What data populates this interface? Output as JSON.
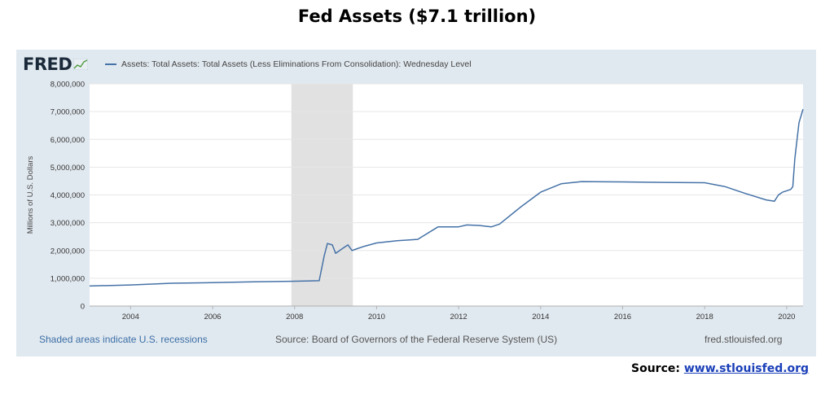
{
  "slide": {
    "title": "Fed Assets ($7.1 trillion)",
    "source_label": "Source:",
    "source_link": "www.stlouisfed.org"
  },
  "fred": {
    "logo_text": "FRED",
    "footer_left": "Shaded areas indicate U.S. recessions",
    "footer_mid": "Source: Board of Governors of the Federal Reserve System (US)",
    "footer_right": "fred.stlouisfed.org"
  },
  "chart_data": {
    "type": "line",
    "title": "Fed Assets ($7.1 trillion)",
    "ylabel": "Millions of U.S. Dollars",
    "xlabel": "",
    "xlim": [
      2003.0,
      2020.4
    ],
    "ylim": [
      0,
      8000000
    ],
    "y_ticks": [
      0,
      1000000,
      2000000,
      3000000,
      4000000,
      5000000,
      6000000,
      7000000,
      8000000
    ],
    "y_tick_labels": [
      "0",
      "1,000,000",
      "2,000,000",
      "3,000,000",
      "4,000,000",
      "5,000,000",
      "6,000,000",
      "7,000,000",
      "8,000,000"
    ],
    "x_ticks": [
      2004,
      2006,
      2008,
      2010,
      2012,
      2014,
      2016,
      2018,
      2020
    ],
    "x_tick_labels": [
      "2004",
      "2006",
      "2008",
      "2010",
      "2012",
      "2014",
      "2016",
      "2018",
      "2020"
    ],
    "grid": true,
    "recession_shading": [
      [
        2007.92,
        2009.42
      ]
    ],
    "line_color": "#4572a7",
    "series": [
      {
        "name": "Assets: Total Assets: Total Assets (Less Eliminations From Consolidation): Wednesday Level",
        "x": [
          2003.0,
          2004.0,
          2005.0,
          2006.0,
          2007.0,
          2007.9,
          2008.6,
          2008.72,
          2008.8,
          2008.92,
          2009.0,
          2009.2,
          2009.3,
          2009.4,
          2009.5,
          2009.7,
          2010.0,
          2010.5,
          2011.0,
          2011.5,
          2012.0,
          2012.2,
          2012.5,
          2012.8,
          2013.0,
          2013.5,
          2014.0,
          2014.5,
          2015.0,
          2016.0,
          2017.0,
          2018.0,
          2018.5,
          2019.0,
          2019.5,
          2019.7,
          2019.8,
          2019.9,
          2020.0,
          2020.1,
          2020.15,
          2020.2,
          2020.3,
          2020.4
        ],
        "y": [
          720000,
          760000,
          820000,
          840000,
          870000,
          890000,
          910000,
          1800000,
          2250000,
          2200000,
          1900000,
          2100000,
          2200000,
          2000000,
          2050000,
          2150000,
          2270000,
          2350000,
          2400000,
          2850000,
          2850000,
          2920000,
          2900000,
          2850000,
          2950000,
          3550000,
          4100000,
          4400000,
          4480000,
          4470000,
          4450000,
          4440000,
          4300000,
          4050000,
          3820000,
          3770000,
          4000000,
          4100000,
          4150000,
          4200000,
          4300000,
          5300000,
          6600000,
          7090000
        ]
      }
    ]
  }
}
